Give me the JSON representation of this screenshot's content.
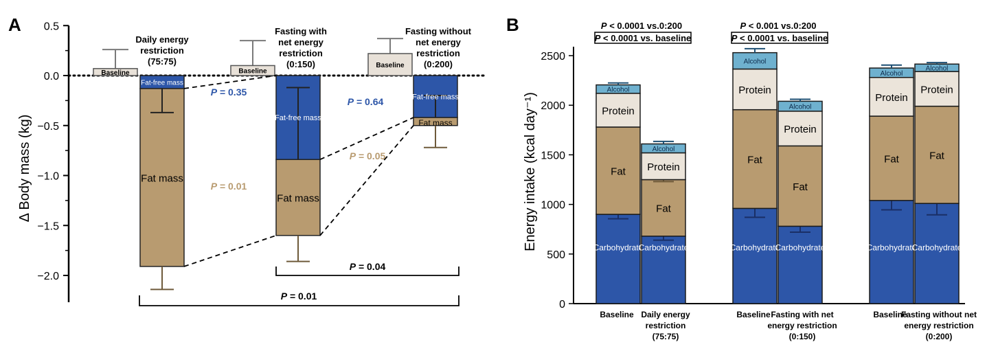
{
  "colors": {
    "carbohydrate": "#2d56a8",
    "fat": "#b89b70",
    "protein": "#ebe4da",
    "alcohol": "#6fb1cf",
    "baseline": "#e8e1d8",
    "fat_free": "#2d56a8",
    "p_fat_free": "#2d56a8",
    "p_fat": "#b89b70",
    "error_fat": "#6e5a3a",
    "error_carb": "#1a2f66"
  },
  "chart_data": [
    {
      "panel": "A",
      "type": "bar",
      "title": "",
      "ylabel": "Δ Body mass (kg)",
      "xlabel": "",
      "ylim": [
        -2.15,
        0.5
      ],
      "yticks": [
        "0.5",
        "0.0",
        "−0.5",
        "−1.0",
        "−1.5",
        "−2.0"
      ],
      "ytick_values": [
        0.5,
        0.0,
        -0.5,
        -1.0,
        -1.5,
        -2.0
      ],
      "groups": [
        {
          "label_lines": [
            "Daily energy",
            "restriction",
            "(75:75)"
          ],
          "baseline_label": "Baseline",
          "baseline_value": 0.07,
          "baseline_error": 0.26,
          "fat_free_mass": -0.13,
          "fat_free_label": "Fat-free mass",
          "fat_free_error": -0.37,
          "fat_mass_total": -1.91,
          "fat_label": "Fat mass",
          "fat_error": -2.14
        },
        {
          "label_lines": [
            "Fasting with",
            "net energy",
            "restriction",
            "(0:150)"
          ],
          "baseline_label": "Baseline",
          "baseline_value": 0.1,
          "baseline_error": 0.35,
          "fat_free_mass": -0.84,
          "fat_free_label": "Fat-free mass",
          "fat_free_error": -0.12,
          "fat_mass_total": -1.6,
          "fat_label": "Fat mass",
          "fat_error": -1.86
        },
        {
          "label_lines": [
            "Fasting without",
            "net energy",
            "restriction",
            "(0:200)"
          ],
          "baseline_label": "Baseline",
          "baseline_value": 0.22,
          "baseline_error": 0.37,
          "fat_free_mass": -0.42,
          "fat_free_label": "Fat-free mass",
          "fat_free_error": -0.2,
          "fat_mass_total": -0.5,
          "fat_label": "Fat mass",
          "fat_error": -0.72
        }
      ],
      "annotations": [
        {
          "text": "P = 0.35",
          "italic_part": "P",
          "value_part": " = 0.35",
          "series": "fat_free"
        },
        {
          "text": "P = 0.64",
          "italic_part": "P",
          "value_part": " = 0.64",
          "series": "fat_free"
        },
        {
          "text": "P = 0.01",
          "italic_part": "P",
          "value_part": " = 0.01",
          "series": "fat"
        },
        {
          "text": "P = 0.05",
          "italic_part": "P",
          "value_part": " = 0.05",
          "series": "fat"
        },
        {
          "text": "P = 0.04",
          "italic_part": "P",
          "value_part": " = 0.04",
          "series": "total"
        },
        {
          "text": "P = 0.01",
          "italic_part": "P",
          "value_part": " = 0.01",
          "series": "total"
        }
      ]
    },
    {
      "panel": "B",
      "type": "bar",
      "stacked": true,
      "title": "",
      "ylabel": "Energy intake (kcal day⁻¹)",
      "xlabel": "",
      "ylim": [
        0,
        2700
      ],
      "yticks": [
        "0",
        "500",
        "1000",
        "1500",
        "2000",
        "2500"
      ],
      "ytick_values": [
        0,
        500,
        1000,
        1500,
        2000,
        2500
      ],
      "series": [
        {
          "name": "Carbohydrate",
          "label": "Carbohydrate",
          "values": [
            900,
            680,
            960,
            780,
            1040,
            1010
          ],
          "errors": [
            855,
            640,
            870,
            720,
            945,
            895
          ]
        },
        {
          "name": "Fat",
          "label": "Fat",
          "values": [
            880,
            570,
            995,
            810,
            850,
            980
          ],
          "errors": [
            1800,
            1230,
            1990,
            1610,
            1940,
            2000
          ]
        },
        {
          "name": "Protein",
          "label": "Protein",
          "values": [
            340,
            270,
            410,
            350,
            390,
            350
          ],
          "errors": [
            2140,
            1540,
            2380,
            1960,
            2300,
            2360
          ]
        },
        {
          "name": "Alcohol",
          "label": "Alcohol",
          "values": [
            85,
            90,
            165,
            100,
            95,
            75
          ],
          "errors": [
            2225,
            1635,
            2570,
            2060,
            2405,
            2430
          ]
        }
      ],
      "categories": [
        {
          "lines": [
            "Baseline"
          ]
        },
        {
          "lines": [
            "Daily energy",
            "restriction",
            "(75:75)"
          ]
        },
        {
          "lines": [
            "Baseline"
          ]
        },
        {
          "lines": [
            "Fasting with net",
            "energy restriction",
            "(0:150)"
          ]
        },
        {
          "lines": [
            "Baseline"
          ]
        },
        {
          "lines": [
            "Fasting  without net",
            "energy restriction",
            "(0:200)"
          ]
        }
      ],
      "annotations": [
        {
          "italic_part": "P",
          "value_part": " < 0.0001 vs.0:200",
          "boxed": false
        },
        {
          "italic_part": "P",
          "value_part": " < 0.0001 vs. baseline",
          "boxed": true
        },
        {
          "italic_part": "P",
          "value_part": " < 0.001 vs.0:200",
          "boxed": false
        },
        {
          "italic_part": "P",
          "value_part": " < 0.0001 vs. baseline",
          "boxed": true
        }
      ]
    }
  ],
  "panel_labels": [
    "A",
    "B"
  ]
}
